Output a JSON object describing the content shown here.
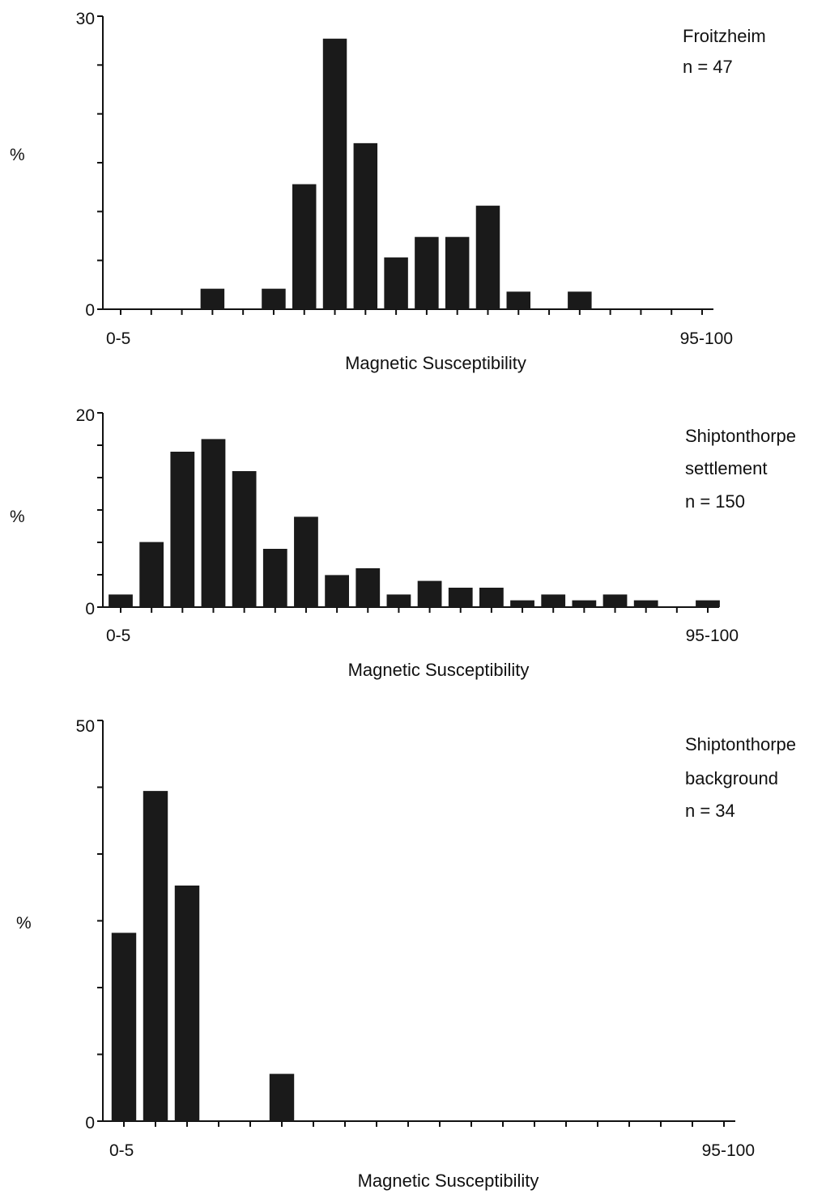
{
  "figure": {
    "charts": [
      {
        "id": "froitzheim",
        "legend_lines": [
          "Froitzheim",
          "n = 47"
        ]
      },
      {
        "id": "shipton-settlement",
        "legend_lines": [
          "Shiptonthorpe",
          "settlement",
          "n = 150"
        ]
      },
      {
        "id": "shipton-background",
        "legend_lines": [
          "Shiptonthorpe",
          "background",
          "n = 34"
        ]
      }
    ]
  },
  "chart_data": [
    {
      "type": "bar",
      "xlabel": "Magnetic Susceptibility",
      "ylabel": "%",
      "ylim": [
        0,
        30
      ],
      "y_tick_labels": [
        "0",
        "30"
      ],
      "x_tick_labels": [
        "0-5",
        "95-100"
      ],
      "categories": [
        "0-5",
        "5-10",
        "10-15",
        "15-20",
        "20-25",
        "25-30",
        "30-35",
        "35-40",
        "40-45",
        "45-50",
        "50-55",
        "55-60",
        "60-65",
        "65-70",
        "70-75",
        "75-80",
        "80-85",
        "85-90",
        "90-95",
        "95-100"
      ],
      "values": [
        0,
        0,
        0,
        2.1,
        0,
        2.1,
        12.8,
        27.7,
        17.0,
        5.3,
        7.4,
        7.4,
        10.6,
        1.8,
        0,
        1.8,
        0,
        0,
        0,
        0
      ]
    },
    {
      "type": "bar",
      "xlabel": "Magnetic Susceptibility",
      "ylabel": "%",
      "ylim": [
        0,
        20
      ],
      "y_tick_labels": [
        "0",
        "20"
      ],
      "x_tick_labels": [
        "0-5",
        "95-100"
      ],
      "categories": [
        "0-5",
        "5-10",
        "10-15",
        "15-20",
        "20-25",
        "25-30",
        "30-35",
        "35-40",
        "40-45",
        "45-50",
        "50-55",
        "55-60",
        "60-65",
        "65-70",
        "70-75",
        "75-80",
        "80-85",
        "85-90",
        "90-95",
        "95-100"
      ],
      "values": [
        1.3,
        6.7,
        16.0,
        17.3,
        14.0,
        6.0,
        9.3,
        3.3,
        4.0,
        1.3,
        2.7,
        2.0,
        2.0,
        0.7,
        1.3,
        0.7,
        1.3,
        0.7,
        0,
        0.7
      ]
    },
    {
      "type": "bar",
      "xlabel": "Magnetic Susceptibility",
      "ylabel": "%",
      "ylim": [
        0,
        50
      ],
      "y_tick_labels": [
        "0",
        "50"
      ],
      "x_tick_labels": [
        "0-5",
        "95-100"
      ],
      "categories": [
        "0-5",
        "5-10",
        "10-15",
        "15-20",
        "20-25",
        "25-30",
        "30-35",
        "35-40",
        "40-45",
        "45-50",
        "50-55",
        "55-60",
        "60-65",
        "65-70",
        "70-75",
        "75-80",
        "80-85",
        "85-90",
        "90-95",
        "95-100"
      ],
      "values": [
        23.5,
        41.2,
        29.4,
        0,
        0,
        5.9,
        0,
        0,
        0,
        0,
        0,
        0,
        0,
        0,
        0,
        0,
        0,
        0,
        0,
        0
      ]
    }
  ]
}
